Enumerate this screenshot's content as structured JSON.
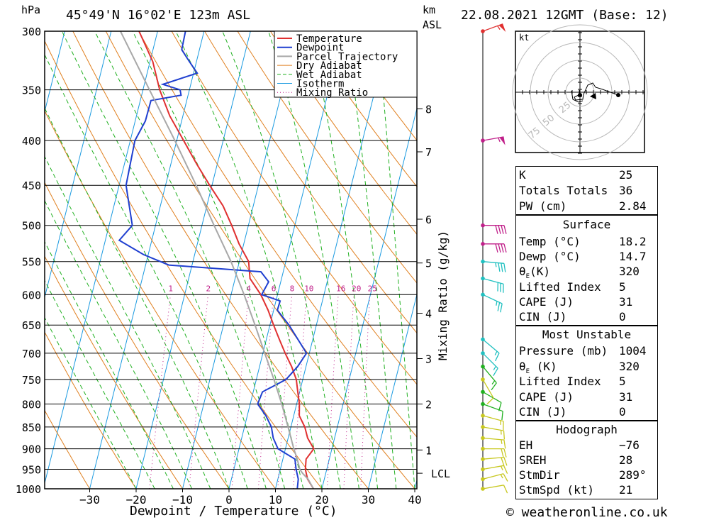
{
  "header": {
    "hpa_unit": "hPa",
    "location": "45°49'N 16°02'E 123m ASL",
    "km_unit": "km",
    "asl_unit": "ASL",
    "date_title": "22.08.2021 12GMT (Base: 12)"
  },
  "chart_data": {
    "type": "line",
    "title": "45°49'N 16°02'E 123m ASL",
    "xlabel": "Dewpoint / Temperature (°C)",
    "ylabel": "hPa",
    "x_ticks": [
      -30,
      -20,
      -10,
      0,
      10,
      20,
      30,
      40
    ],
    "x_tick_labels": [
      "−30",
      "−20",
      "−10",
      "0",
      "10",
      "20",
      "30",
      "40"
    ],
    "xlim": [
      -40,
      40
    ],
    "pressure_levels": [
      300,
      350,
      400,
      450,
      500,
      550,
      600,
      650,
      700,
      750,
      800,
      850,
      900,
      950,
      1000
    ],
    "ylim": [
      1000,
      300
    ],
    "km_axis_label": "km ASL",
    "km_ticks": [
      {
        "p": 368,
        "label": "8"
      },
      {
        "p": 412,
        "label": "7"
      },
      {
        "p": 492,
        "label": "6"
      },
      {
        "p": 552,
        "label": "5"
      },
      {
        "p": 630,
        "label": "4"
      },
      {
        "p": 710,
        "label": "3"
      },
      {
        "p": 800,
        "label": "2"
      },
      {
        "p": 903,
        "label": "1"
      },
      {
        "p": 960,
        "label": "LCL"
      }
    ],
    "mixing_ratio_title": "Mixing Ratio (g/kg)",
    "mixing_ratio_labels": [
      "1",
      "2",
      "4",
      "6",
      "8",
      "10",
      "16",
      "20",
      "25"
    ],
    "legend": [
      "Temperature",
      "Dewpoint",
      "Parcel Trajectory",
      "Dry Adiabat",
      "Wet Adiabat",
      "Isotherm",
      "Mixing Ratio"
    ],
    "colors": {
      "temperature": "#e03030",
      "dewpoint": "#1f3fd0",
      "parcel": "#a8a8a8",
      "dry_adiabat": "#e08020",
      "wet_adiabat": "#20b020",
      "isotherm": "#1a9ae0",
      "mixing_ratio": "#c0208a"
    },
    "series": [
      {
        "name": "Temperature",
        "points": [
          [
            1000,
            18.2
          ],
          [
            975,
            16.4
          ],
          [
            950,
            15.4
          ],
          [
            925,
            15.0
          ],
          [
            900,
            16.1
          ],
          [
            875,
            14.2
          ],
          [
            850,
            13.0
          ],
          [
            825,
            11.2
          ],
          [
            800,
            10.6
          ],
          [
            775,
            9.6
          ],
          [
            750,
            8.6
          ],
          [
            725,
            6.9
          ],
          [
            700,
            4.8
          ],
          [
            675,
            2.8
          ],
          [
            650,
            0.8
          ],
          [
            625,
            -1.2
          ],
          [
            600,
            -3.6
          ],
          [
            575,
            -6.8
          ],
          [
            550,
            -8.0
          ],
          [
            525,
            -11.0
          ],
          [
            500,
            -13.6
          ],
          [
            475,
            -16.5
          ],
          [
            450,
            -20.5
          ],
          [
            425,
            -24.5
          ],
          [
            400,
            -28.5
          ],
          [
            375,
            -32.8
          ],
          [
            350,
            -36.4
          ],
          [
            325,
            -39.4
          ],
          [
            300,
            -44.0
          ]
        ]
      },
      {
        "name": "Dewpoint",
        "points": [
          [
            1000,
            14.7
          ],
          [
            975,
            14.4
          ],
          [
            950,
            13.4
          ],
          [
            925,
            12.6
          ],
          [
            900,
            8.4
          ],
          [
            875,
            6.8
          ],
          [
            850,
            5.8
          ],
          [
            825,
            4.0
          ],
          [
            800,
            1.6
          ],
          [
            775,
            2.0
          ],
          [
            750,
            6.4
          ],
          [
            725,
            8.2
          ],
          [
            700,
            9.4
          ],
          [
            675,
            6.8
          ],
          [
            650,
            4.1
          ],
          [
            625,
            0.8
          ],
          [
            610,
            0.9
          ],
          [
            600,
            -3.4
          ],
          [
            580,
            -2.6
          ],
          [
            565,
            -4.8
          ],
          [
            555,
            -25.0
          ],
          [
            540,
            -31.0
          ],
          [
            520,
            -37.0
          ],
          [
            500,
            -35.0
          ],
          [
            450,
            -38.5
          ],
          [
            400,
            -39.0
          ],
          [
            380,
            -37.8
          ],
          [
            360,
            -37.7
          ],
          [
            355,
            -31.5
          ],
          [
            350,
            -32.0
          ],
          [
            345,
            -36.0
          ],
          [
            335,
            -29.2
          ],
          [
            325,
            -31.5
          ],
          [
            315,
            -33.8
          ],
          [
            300,
            -34.0
          ]
        ]
      },
      {
        "name": "Parcel Trajectory",
        "points": [
          [
            1000,
            18.2
          ],
          [
            975,
            16.5
          ],
          [
            960,
            15.0
          ],
          [
            950,
            14.2
          ],
          [
            925,
            13.1
          ],
          [
            900,
            11.8
          ],
          [
            850,
            9.4
          ],
          [
            800,
            6.8
          ],
          [
            750,
            3.8
          ],
          [
            700,
            0.4
          ],
          [
            650,
            -3.2
          ],
          [
            600,
            -7.2
          ],
          [
            550,
            -11.8
          ],
          [
            500,
            -17.4
          ],
          [
            450,
            -23.4
          ],
          [
            400,
            -30.4
          ],
          [
            350,
            -38.6
          ],
          [
            300,
            -48.0
          ]
        ]
      }
    ],
    "wind_barbs": [
      {
        "p": 1000,
        "dir": 260,
        "spd": 10,
        "color": "#c8c820"
      },
      {
        "p": 975,
        "dir": 255,
        "spd": 15,
        "color": "#c8c820"
      },
      {
        "p": 950,
        "dir": 260,
        "spd": 15,
        "color": "#c8c820"
      },
      {
        "p": 925,
        "dir": 265,
        "spd": 20,
        "color": "#c8c820"
      },
      {
        "p": 900,
        "dir": 270,
        "spd": 20,
        "color": "#c8c820"
      },
      {
        "p": 875,
        "dir": 275,
        "spd": 15,
        "color": "#c8c820"
      },
      {
        "p": 850,
        "dir": 280,
        "spd": 15,
        "color": "#c8c820"
      },
      {
        "p": 825,
        "dir": 285,
        "spd": 15,
        "color": "#c8c820"
      },
      {
        "p": 800,
        "dir": 290,
        "spd": 10,
        "color": "#20b020"
      },
      {
        "p": 775,
        "dir": 300,
        "spd": 10,
        "color": "#20b020"
      },
      {
        "p": 750,
        "dir": 330,
        "spd": 10,
        "color": "#c8c820"
      },
      {
        "p": 725,
        "dir": 320,
        "spd": 15,
        "color": "#20b020"
      },
      {
        "p": 700,
        "dir": 315,
        "spd": 15,
        "color": "#20c0c0"
      },
      {
        "p": 675,
        "dir": 310,
        "spd": 15,
        "color": "#20c0c0"
      },
      {
        "p": 600,
        "dir": 295,
        "spd": 25,
        "color": "#20c0c0"
      },
      {
        "p": 575,
        "dir": 285,
        "spd": 30,
        "color": "#20c0c0"
      },
      {
        "p": 550,
        "dir": 275,
        "spd": 35,
        "color": "#20c0c0"
      },
      {
        "p": 525,
        "dir": 270,
        "spd": 40,
        "color": "#c0208a"
      },
      {
        "p": 500,
        "dir": 270,
        "spd": 40,
        "color": "#c0208a"
      },
      {
        "p": 400,
        "dir": 260,
        "spd": 55,
        "color": "#c0208a"
      },
      {
        "p": 300,
        "dir": 250,
        "spd": 55,
        "color": "#e03030"
      }
    ]
  },
  "hodograph": {
    "unit": "kt",
    "ring_labels": [
      "25",
      "50",
      "75"
    ]
  },
  "indices": {
    "k_label": "K",
    "k_value": "25",
    "tt_label": "Totals Totals",
    "tt_value": "36",
    "pw_label": "PW (cm)",
    "pw_value": "2.84"
  },
  "surface": {
    "title": "Surface",
    "temp_label": "Temp (°C)",
    "temp_value": "18.2",
    "dewp_label": "Dewp (°C)",
    "dewp_value": "14.7",
    "theta_label": "θ",
    "theta_sub": "E",
    "theta_unit": "(K)",
    "theta_value": "320",
    "li_label": "Lifted Index",
    "li_value": "5",
    "cape_label": "CAPE (J)",
    "cape_value": "31",
    "cin_label": "CIN (J)",
    "cin_value": "0"
  },
  "most_unstable": {
    "title": "Most Unstable",
    "pressure_label": "Pressure (mb)",
    "pressure_value": "1004",
    "theta_label": "θ",
    "theta_sub": "E",
    "theta_unit": " (K)",
    "theta_value": "320",
    "li_label": "Lifted Index",
    "li_value": "5",
    "cape_label": "CAPE (J)",
    "cape_value": "31",
    "cin_label": "CIN (J)",
    "cin_value": "0"
  },
  "hodo_params": {
    "title": "Hodograph",
    "eh_label": "EH",
    "eh_value": "−76",
    "sreh_label": "SREH",
    "sreh_value": "28",
    "stmdir_label": "StmDir",
    "stmdir_value": "289°",
    "stmspd_label": "StmSpd (kt)",
    "stmspd_value": "21"
  },
  "footer": {
    "copyright": "© weatheronline.co.uk"
  }
}
